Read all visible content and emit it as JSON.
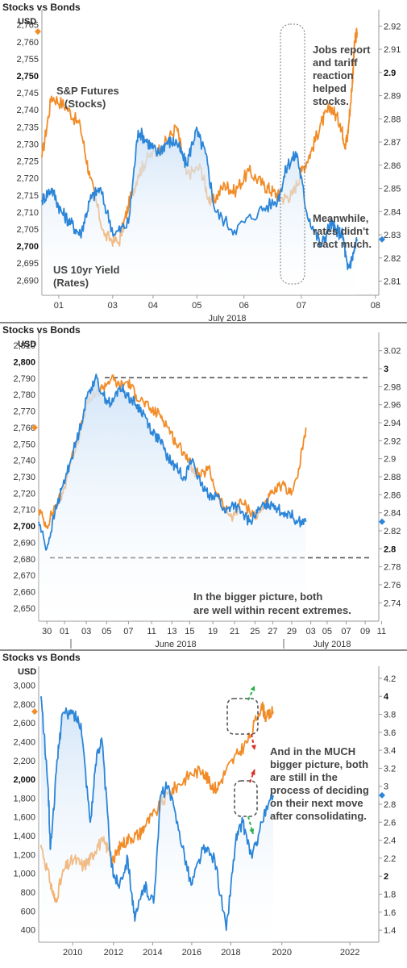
{
  "colors": {
    "stocks": "#f28c28",
    "bonds": "#2b85d8",
    "fill": "#cfe3f7",
    "axis": "#9a9a9a",
    "dash": "#555555"
  },
  "chart_data": [
    {
      "type": "line",
      "title": "Stocks vs Bonds",
      "left_unit": "USD",
      "x_ticks": [
        "01",
        "03",
        "04",
        "05",
        "06",
        "07",
        "08"
      ],
      "x_sublabel": "July 2018",
      "left_ticks": [
        "2,765",
        "2,760",
        "2,755",
        "2,750",
        "2,745",
        "2,740",
        "2,735",
        "2,730",
        "2,725",
        "2,720",
        "2,715",
        "2,710",
        "2,705",
        "2,700",
        "2,695",
        "2,690"
      ],
      "right_ticks": [
        "2.92",
        "2.91",
        "2.9",
        "2.89",
        "2.88",
        "2.87",
        "2.86",
        "2.85",
        "2.84",
        "2.83",
        "2.82",
        "2.81"
      ],
      "ylim_left": [
        2687,
        2768
      ],
      "ylim_right": [
        2.806,
        2.925
      ],
      "series": [
        {
          "name": "S&P Futures (Stocks)",
          "axis": "left",
          "x": [
            0,
            0.2,
            0.5,
            0.8,
            1.0,
            1.3,
            1.6,
            1.8,
            2.0,
            2.2,
            2.5,
            2.8,
            3.0,
            3.3,
            3.5,
            3.8,
            4.0,
            4.3,
            4.6,
            4.8,
            5.0,
            5.2,
            5.4,
            5.6,
            5.8,
            6.0,
            6.2,
            6.3,
            6.35,
            6.45,
            6.5,
            6.55
          ],
          "values": [
            2726,
            2744,
            2741,
            2735,
            2720,
            2703,
            2701,
            2712,
            2721,
            2726,
            2729,
            2735,
            2721,
            2723,
            2712,
            2718,
            2716,
            2722,
            2718,
            2716,
            2714,
            2715,
            2722,
            2728,
            2736,
            2741,
            2736,
            2730,
            2732,
            2748,
            2760,
            2763
          ]
        },
        {
          "name": "US 10yr Yield (Rates)",
          "axis": "right",
          "x": [
            0,
            0.2,
            0.4,
            0.6,
            0.8,
            1.0,
            1.2,
            1.5,
            1.8,
            2.0,
            2.2,
            2.4,
            2.6,
            2.8,
            3.0,
            3.2,
            3.4,
            3.6,
            4.0,
            4.5,
            4.9,
            5.1,
            5.3,
            5.5,
            5.8,
            6.0,
            6.1,
            6.25,
            6.35,
            6.45,
            6.55
          ],
          "values": [
            2.845,
            2.85,
            2.84,
            2.835,
            2.83,
            2.845,
            2.85,
            2.83,
            2.835,
            2.875,
            2.87,
            2.865,
            2.87,
            2.87,
            2.86,
            2.875,
            2.865,
            2.84,
            2.832,
            2.84,
            2.845,
            2.86,
            2.865,
            2.84,
            2.825,
            2.835,
            2.832,
            2.83,
            2.815,
            2.82,
            2.828
          ]
        }
      ],
      "annotations": [
        "S&P Futures",
        "(Stocks)",
        "US 10yr Yield",
        "(Rates)",
        "Jobs report",
        "and tariff",
        "reaction",
        "helped",
        "stocks.",
        "Meanwhile,",
        "rates didn't",
        "react much."
      ]
    },
    {
      "type": "line",
      "title": "Stocks vs Bonds",
      "left_unit": "USD",
      "x_ticks": [
        "30",
        "01",
        "03",
        "05",
        "07",
        "11",
        "13",
        "15",
        "19",
        "21",
        "25",
        "27",
        "29",
        "03",
        "05",
        "07",
        "09",
        "11"
      ],
      "x_sublabels": [
        "June 2018",
        "July 2018"
      ],
      "left_ticks": [
        "2,810",
        "2,800",
        "2,790",
        "2,780",
        "2,770",
        "2,760",
        "2,750",
        "2,740",
        "2,730",
        "2,720",
        "2,710",
        "2,700",
        "2,690",
        "2,680",
        "2,670",
        "2,660",
        "2,650"
      ],
      "right_ticks": [
        "3.02",
        "3",
        "2.98",
        "2.96",
        "2.94",
        "2.92",
        "2.9",
        "2.88",
        "2.86",
        "2.84",
        "2.82",
        "2.8",
        "2.78",
        "2.76",
        "2.74"
      ],
      "ylim_left": [
        2645,
        2815
      ],
      "ylim_right": [
        2.725,
        3.035
      ],
      "series": [
        {
          "name": "S&P Futures",
          "axis": "left",
          "x": [
            0,
            0.5,
            1,
            1.5,
            2,
            2.5,
            3,
            3.5,
            4,
            4.5,
            5,
            5.5,
            6,
            6.5,
            7,
            7.5,
            8,
            8.5,
            9,
            9.5,
            10,
            10.5,
            11,
            11.5,
            12,
            12.5,
            13,
            13.5,
            14,
            14.5,
            15,
            15.5,
            16,
            16.5
          ],
          "values": [
            2710,
            2700,
            2712,
            2720,
            2740,
            2755,
            2775,
            2780,
            2785,
            2790,
            2785,
            2788,
            2780,
            2775,
            2770,
            2768,
            2760,
            2750,
            2745,
            2735,
            2730,
            2735,
            2720,
            2710,
            2705,
            2715,
            2710,
            2705,
            2715,
            2720,
            2725,
            2720,
            2730,
            2760
          ]
        },
        {
          "name": "US 10yr Yield",
          "axis": "right",
          "x": [
            0,
            0.5,
            1,
            1.5,
            2,
            2.5,
            3,
            3.5,
            4,
            4.5,
            5,
            5.5,
            6,
            6.5,
            7,
            7.5,
            8,
            8.5,
            9,
            9.5,
            10,
            10.5,
            11,
            11.5,
            12,
            12.5,
            13,
            13.5,
            14,
            14.5,
            15,
            15.5,
            16,
            16.5
          ],
          "values": [
            2.83,
            2.8,
            2.84,
            2.87,
            2.9,
            2.93,
            2.97,
            2.99,
            2.97,
            2.96,
            2.98,
            2.97,
            2.96,
            2.95,
            2.93,
            2.92,
            2.9,
            2.89,
            2.88,
            2.9,
            2.87,
            2.86,
            2.86,
            2.84,
            2.85,
            2.84,
            2.83,
            2.84,
            2.85,
            2.85,
            2.84,
            2.84,
            2.83,
            2.83
          ]
        }
      ],
      "reference_lines_right": [
        2.99,
        2.79
      ],
      "annotations": [
        "In the bigger picture, both",
        "are well within recent extremes."
      ]
    },
    {
      "type": "line",
      "title": "Stocks vs Bonds",
      "left_unit": "USD",
      "x_ticks": [
        "2010",
        "2012",
        "2014",
        "2016",
        "2018",
        "2020",
        "2022"
      ],
      "left_ticks": [
        "3,000",
        "2,800",
        "2,600",
        "2,400",
        "2,200",
        "2,000",
        "1,800",
        "1,600",
        "1,400",
        "1,200",
        "1,000",
        "800",
        "600",
        "400"
      ],
      "right_ticks": [
        "4.2",
        "4",
        "3.8",
        "3.6",
        "3.4",
        "3.2",
        "3",
        "2.8",
        "2.6",
        "2.4",
        "2.2",
        "2",
        "1.8",
        "1.6",
        "1.4"
      ],
      "ylim_left": [
        320,
        3150
      ],
      "ylim_right": [
        1.32,
        4.28
      ],
      "series": [
        {
          "name": "S&P Futures",
          "axis": "left",
          "x": [
            2008.6,
            2009.0,
            2009.2,
            2009.6,
            2010.0,
            2010.4,
            2010.7,
            2011.0,
            2011.3,
            2011.7,
            2012.0,
            2012.4,
            2012.8,
            2013.0,
            2013.5,
            2014.0,
            2014.5,
            2015.0,
            2015.5,
            2015.8,
            2016.1,
            2016.5,
            2017.0,
            2017.5,
            2018.0,
            2018.2,
            2018.5
          ],
          "values": [
            1300,
            900,
            700,
            1050,
            1150,
            1080,
            1150,
            1300,
            1330,
            1150,
            1300,
            1380,
            1420,
            1500,
            1650,
            1840,
            1950,
            2060,
            2100,
            1950,
            1900,
            2100,
            2270,
            2440,
            2800,
            2650,
            2720
          ]
        },
        {
          "name": "US 10yr Yield",
          "axis": "right",
          "x": [
            2008.6,
            2008.9,
            2009.0,
            2009.3,
            2009.5,
            2010.0,
            2010.3,
            2010.7,
            2011.0,
            2011.2,
            2011.6,
            2011.9,
            2012.3,
            2012.6,
            2013.0,
            2013.4,
            2013.7,
            2014.0,
            2014.5,
            2015.0,
            2015.5,
            2016.0,
            2016.5,
            2016.9,
            2017.2,
            2017.6,
            2018.0,
            2018.5
          ],
          "values": [
            4.0,
            3.0,
            2.3,
            3.3,
            3.8,
            3.8,
            3.7,
            2.6,
            3.4,
            3.5,
            2.1,
            1.9,
            2.2,
            1.5,
            1.9,
            1.7,
            2.9,
            3.0,
            2.5,
            1.9,
            2.3,
            2.2,
            1.4,
            2.4,
            2.6,
            2.2,
            2.6,
            2.9
          ]
        }
      ],
      "annotations": [
        "And in the MUCH",
        "bigger picture, both",
        "are still in the",
        "process of deciding",
        "on their next move",
        "after consolidating."
      ]
    }
  ]
}
